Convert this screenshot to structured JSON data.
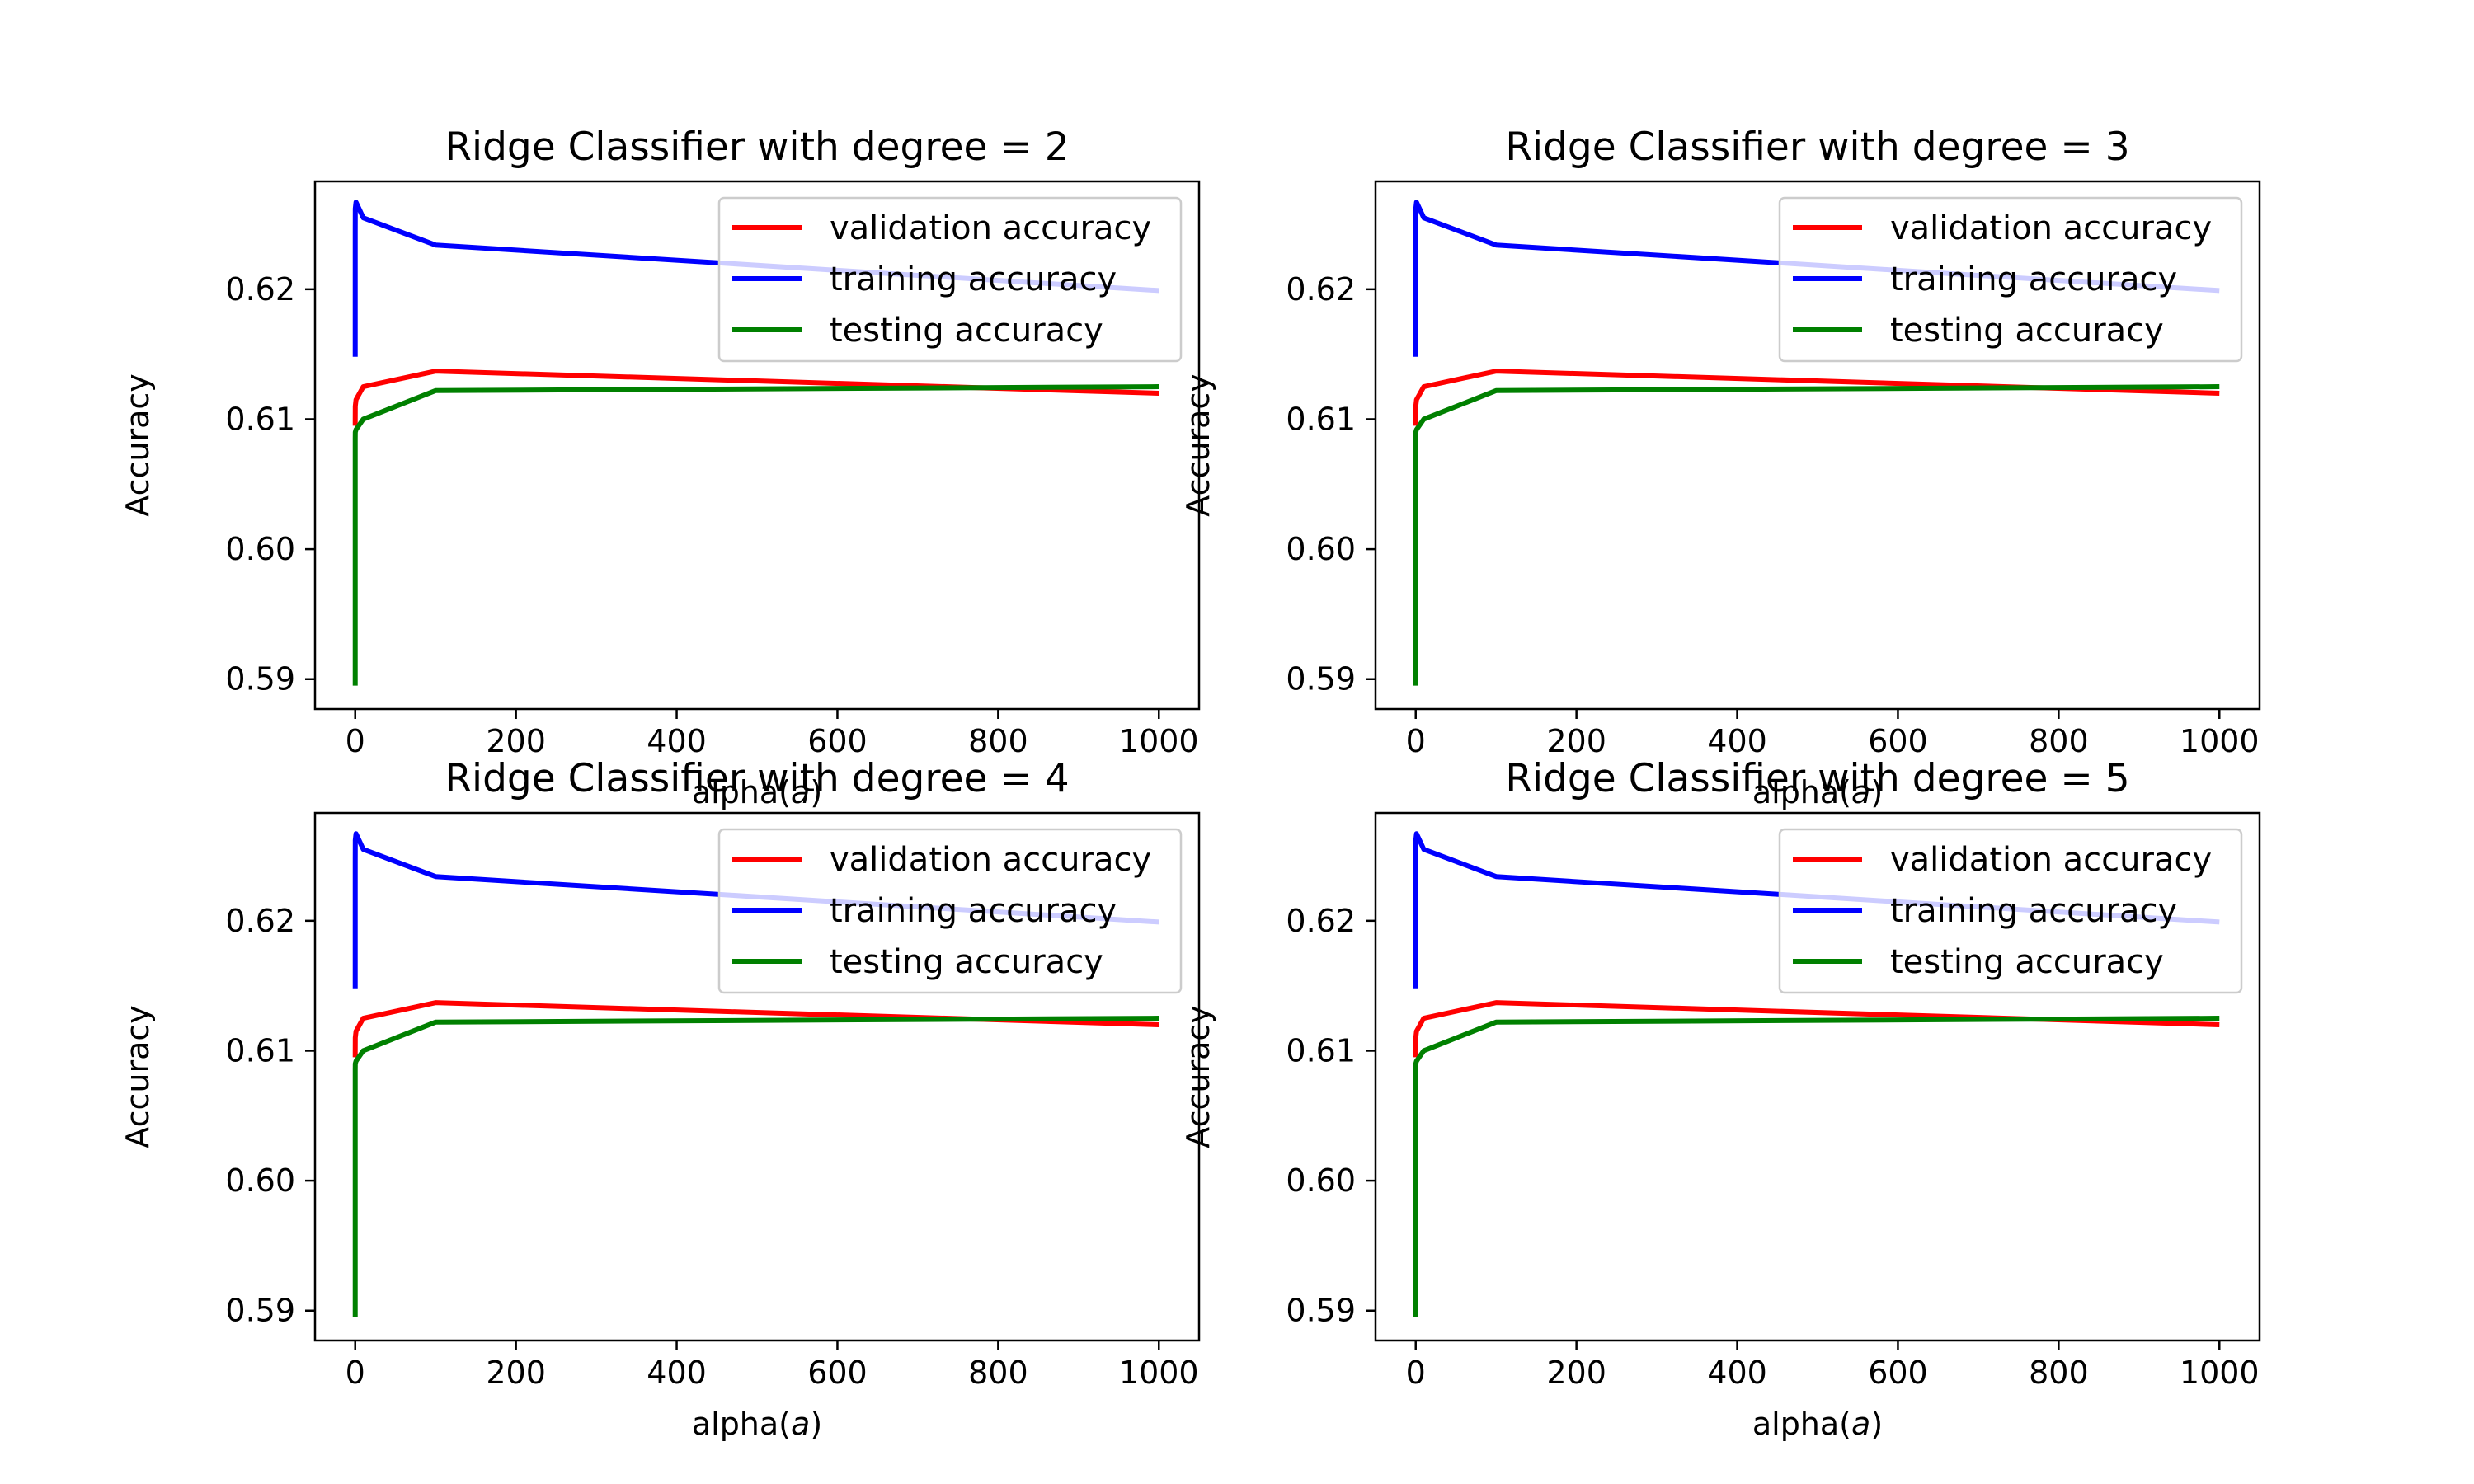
{
  "colors": {
    "validation": "#ff0000",
    "training": "#0000ff",
    "testing": "#008000",
    "background": "#ffffff",
    "axes": "#000000"
  },
  "chart_data": [
    {
      "type": "line",
      "title": "Ridge Classifier with degree = 2",
      "xlabel_text": "alpha(",
      "xlabel_symbol": "a",
      "xlabel_close": ")",
      "ylabel": "Accuracy",
      "xlim": [
        -50,
        1050
      ],
      "ylim": [
        0.5877,
        0.6283
      ],
      "xticks": [
        0,
        200,
        400,
        600,
        800,
        1000
      ],
      "yticks": [
        0.59,
        0.6,
        0.61,
        0.62
      ],
      "ytick_labels": [
        "0.59",
        "0.60",
        "0.61",
        "0.62"
      ],
      "legend_position": "upper right",
      "series": [
        {
          "name": "validation accuracy",
          "color_key": "validation",
          "x": [
            0.001,
            0.01,
            0.1,
            1,
            10,
            100,
            1000
          ],
          "y": [
            0.6095,
            0.61,
            0.611,
            0.6115,
            0.6125,
            0.6137,
            0.612
          ]
        },
        {
          "name": "training accuracy",
          "color_key": "training",
          "x": [
            0.001,
            0.01,
            0.1,
            1,
            10,
            100,
            1000
          ],
          "y": [
            0.6148,
            0.6245,
            0.6262,
            0.6267,
            0.6255,
            0.6234,
            0.6199
          ]
        },
        {
          "name": "testing accuracy",
          "color_key": "testing",
          "x": [
            0.001,
            0.01,
            0.1,
            1,
            10,
            100,
            1000
          ],
          "y": [
            0.5895,
            0.6085,
            0.609,
            0.6092,
            0.61,
            0.6122,
            0.6125
          ]
        }
      ]
    },
    {
      "type": "line",
      "title": "Ridge Classifier with degree = 3",
      "xlabel_text": "alpha(",
      "xlabel_symbol": "a",
      "xlabel_close": ")",
      "ylabel": "Accuracy",
      "xlim": [
        -50,
        1050
      ],
      "ylim": [
        0.5877,
        0.6283
      ],
      "xticks": [
        0,
        200,
        400,
        600,
        800,
        1000
      ],
      "yticks": [
        0.59,
        0.6,
        0.61,
        0.62
      ],
      "ytick_labels": [
        "0.59",
        "0.60",
        "0.61",
        "0.62"
      ],
      "legend_position": "upper right",
      "series": [
        {
          "name": "validation accuracy",
          "color_key": "validation",
          "x": [
            0.001,
            0.01,
            0.1,
            1,
            10,
            100,
            1000
          ],
          "y": [
            0.6095,
            0.61,
            0.611,
            0.6115,
            0.6125,
            0.6137,
            0.612
          ]
        },
        {
          "name": "training accuracy",
          "color_key": "training",
          "x": [
            0.001,
            0.01,
            0.1,
            1,
            10,
            100,
            1000
          ],
          "y": [
            0.6148,
            0.6245,
            0.6262,
            0.6267,
            0.6255,
            0.6234,
            0.6199
          ]
        },
        {
          "name": "testing accuracy",
          "color_key": "testing",
          "x": [
            0.001,
            0.01,
            0.1,
            1,
            10,
            100,
            1000
          ],
          "y": [
            0.5895,
            0.6085,
            0.609,
            0.6092,
            0.61,
            0.6122,
            0.6125
          ]
        }
      ]
    },
    {
      "type": "line",
      "title": "Ridge Classifier with degree = 4",
      "xlabel_text": "alpha(",
      "xlabel_symbol": "a",
      "xlabel_close": ")",
      "ylabel": "Accuracy",
      "xlim": [
        -50,
        1050
      ],
      "ylim": [
        0.5877,
        0.6283
      ],
      "xticks": [
        0,
        200,
        400,
        600,
        800,
        1000
      ],
      "yticks": [
        0.59,
        0.6,
        0.61,
        0.62
      ],
      "ytick_labels": [
        "0.59",
        "0.60",
        "0.61",
        "0.62"
      ],
      "legend_position": "upper right",
      "series": [
        {
          "name": "validation accuracy",
          "color_key": "validation",
          "x": [
            0.001,
            0.01,
            0.1,
            1,
            10,
            100,
            1000
          ],
          "y": [
            0.6095,
            0.61,
            0.611,
            0.6115,
            0.6125,
            0.6137,
            0.612
          ]
        },
        {
          "name": "training accuracy",
          "color_key": "training",
          "x": [
            0.001,
            0.01,
            0.1,
            1,
            10,
            100,
            1000
          ],
          "y": [
            0.6148,
            0.6245,
            0.6262,
            0.6267,
            0.6255,
            0.6234,
            0.6199
          ]
        },
        {
          "name": "testing accuracy",
          "color_key": "testing",
          "x": [
            0.001,
            0.01,
            0.1,
            1,
            10,
            100,
            1000
          ],
          "y": [
            0.5895,
            0.6085,
            0.609,
            0.6092,
            0.61,
            0.6122,
            0.6125
          ]
        }
      ]
    },
    {
      "type": "line",
      "title": "Ridge Classifier with degree = 5",
      "xlabel_text": "alpha(",
      "xlabel_symbol": "a",
      "xlabel_close": ")",
      "ylabel": "Accuracy",
      "xlim": [
        -50,
        1050
      ],
      "ylim": [
        0.5877,
        0.6283
      ],
      "xticks": [
        0,
        200,
        400,
        600,
        800,
        1000
      ],
      "yticks": [
        0.59,
        0.6,
        0.61,
        0.62
      ],
      "ytick_labels": [
        "0.59",
        "0.60",
        "0.61",
        "0.62"
      ],
      "legend_position": "upper right",
      "series": [
        {
          "name": "validation accuracy",
          "color_key": "validation",
          "x": [
            0.001,
            0.01,
            0.1,
            1,
            10,
            100,
            1000
          ],
          "y": [
            0.6095,
            0.61,
            0.611,
            0.6115,
            0.6125,
            0.6137,
            0.612
          ]
        },
        {
          "name": "training accuracy",
          "color_key": "training",
          "x": [
            0.001,
            0.01,
            0.1,
            1,
            10,
            100,
            1000
          ],
          "y": [
            0.6148,
            0.6245,
            0.6262,
            0.6267,
            0.6255,
            0.6234,
            0.6199
          ]
        },
        {
          "name": "testing accuracy",
          "color_key": "testing",
          "x": [
            0.001,
            0.01,
            0.1,
            1,
            10,
            100,
            1000
          ],
          "y": [
            0.5895,
            0.6085,
            0.609,
            0.6092,
            0.61,
            0.6122,
            0.6125
          ]
        }
      ]
    }
  ]
}
